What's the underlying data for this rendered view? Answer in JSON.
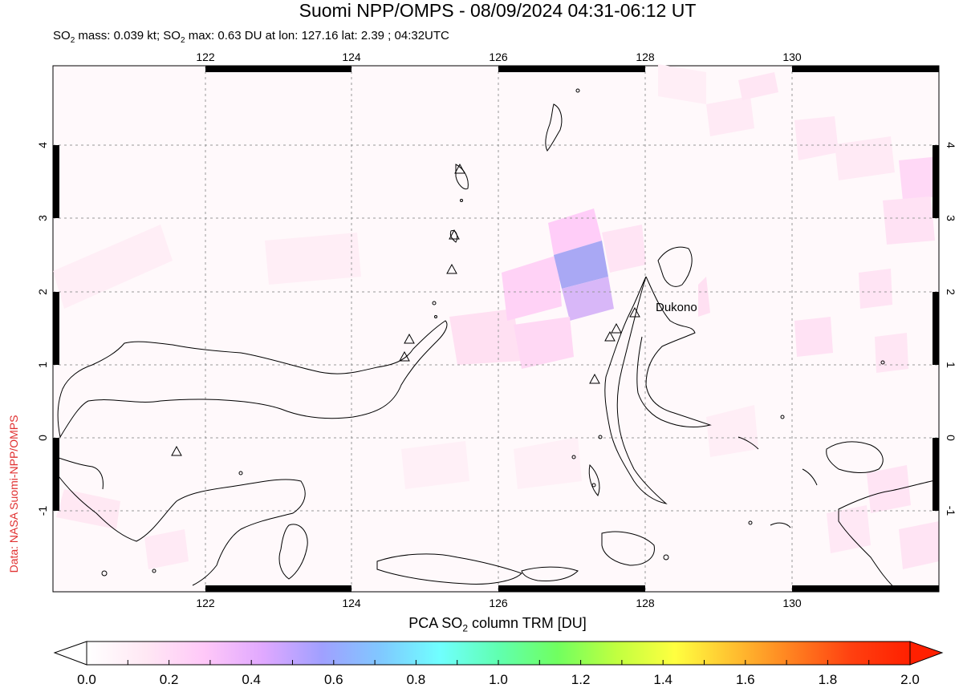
{
  "title": "Suomi NPP/OMPS - 08/09/2024 04:31-06:12 UT",
  "subtitle_parts": {
    "a": "SO",
    "a_sub": "2",
    "b": " mass: 0.039 kt; SO",
    "b_sub": "2",
    "c": " max: 0.63 DU at lon: 127.16 lat: 2.39 ; 04:32UTC"
  },
  "credit": "Data: NASA Suomi-NPP/OMPS",
  "map": {
    "lon_ticks": [
      "122",
      "124",
      "126",
      "128",
      "130"
    ],
    "lat_ticks": [
      "4",
      "3",
      "2",
      "1",
      "0",
      "-1"
    ],
    "volcano_label": "Dukono",
    "grid": true
  },
  "colorbar": {
    "title_a": "PCA SO",
    "title_sub": "2",
    "title_b": " column TRM [DU]",
    "labels": [
      "0.0",
      "0.2",
      "0.4",
      "0.6",
      "0.8",
      "1.0",
      "1.2",
      "1.4",
      "1.6",
      "1.8",
      "2.0"
    ],
    "colors": [
      "#ffffff",
      "#ffe8f4",
      "#ffc8f8",
      "#e0a8ff",
      "#a0a0ff",
      "#80c8ff",
      "#70ffff",
      "#60ffb0",
      "#70ff60",
      "#c0ff40",
      "#ffff40",
      "#ffc030",
      "#ff8020",
      "#ff4010",
      "#ff2000"
    ]
  }
}
